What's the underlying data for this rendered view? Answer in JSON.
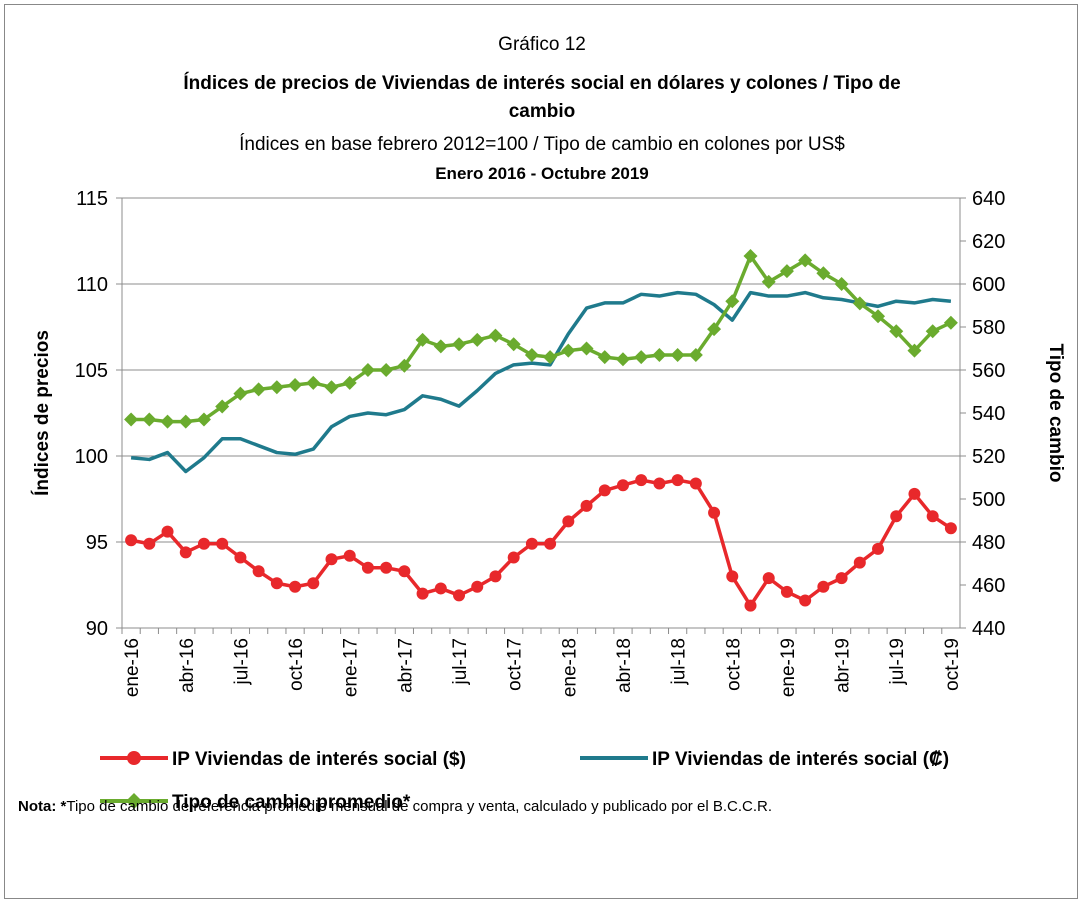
{
  "chart_data": {
    "type": "line",
    "title_top": "Gráfico 12",
    "title": "Índices de precios de Viviendas de interés social en dólares y colones / Tipo de cambio",
    "subtitle": "Índices en base febrero 2012=100 / Tipo de cambio en colones por US$",
    "period": "Enero 2016 - Octubre 2019",
    "y_label": "Índices de precios",
    "y2_label": "Tipo de cambio",
    "categories": [
      "ene-16",
      null,
      null,
      "abr-16",
      null,
      null,
      "jul-16",
      null,
      null,
      "oct-16",
      null,
      null,
      "ene-17",
      null,
      null,
      "abr-17",
      null,
      null,
      "jul-17",
      null,
      null,
      "oct-17",
      null,
      null,
      "ene-18",
      null,
      null,
      "abr-18",
      null,
      null,
      "jul-18",
      null,
      null,
      "oct-18",
      null,
      null,
      "ene-19",
      null,
      null,
      "abr-19",
      null,
      null,
      "jul-19",
      null,
      null,
      "oct-19"
    ],
    "ylim": [
      90,
      115
    ],
    "yticks": [
      90,
      95,
      100,
      105,
      110,
      115
    ],
    "y2lim": [
      440,
      640
    ],
    "y2ticks": [
      440,
      460,
      480,
      500,
      520,
      540,
      560,
      580,
      600,
      620,
      640
    ],
    "grid": true,
    "series": [
      {
        "name": "IP Viviendas de interés social ($)",
        "color": "#e8282b",
        "marker": "circle",
        "values": [
          95.1,
          94.9,
          95.6,
          94.4,
          94.9,
          94.9,
          94.1,
          93.3,
          92.6,
          92.4,
          92.6,
          94.0,
          94.2,
          93.5,
          93.5,
          93.3,
          92.0,
          92.3,
          91.9,
          92.4,
          93.0,
          94.1,
          94.9,
          94.9,
          96.2,
          97.1,
          98.0,
          98.3,
          98.6,
          98.4,
          98.6,
          98.4,
          96.7,
          93.0,
          91.3,
          92.9,
          92.1,
          91.6,
          92.4,
          92.9,
          93.8,
          94.6,
          96.5,
          97.8,
          96.5,
          95.8
        ]
      },
      {
        "name": "IP Viviendas de interés social (₡)",
        "color": "#1f7a8c",
        "marker": "none",
        "values": [
          99.9,
          99.8,
          100.2,
          99.1,
          99.9,
          101.0,
          101.0,
          100.6,
          100.2,
          100.1,
          100.4,
          101.7,
          102.3,
          102.5,
          102.4,
          102.7,
          103.5,
          103.3,
          102.9,
          103.8,
          104.8,
          105.3,
          105.4,
          105.3,
          107.1,
          108.6,
          108.9,
          108.9,
          109.4,
          109.3,
          109.5,
          109.4,
          108.8,
          107.9,
          109.5,
          109.3,
          109.3,
          109.5,
          109.2,
          109.1,
          108.9,
          108.7,
          109.0,
          108.9,
          109.1,
          109.0
        ]
      },
      {
        "name": "Tipo de cambio promedio*",
        "color": "#6aab2e",
        "marker": "diamond",
        "axis": "y2",
        "values": [
          537,
          537,
          536,
          536,
          537,
          543,
          549,
          551,
          552,
          553,
          554,
          552,
          554,
          560,
          560,
          562,
          574,
          571,
          572,
          574,
          576,
          572,
          567,
          566,
          569,
          570,
          566,
          565,
          566,
          567,
          567,
          567,
          579,
          592,
          613,
          601,
          606,
          611,
          605,
          600,
          591,
          585,
          578,
          569,
          578,
          582
        ]
      }
    ],
    "note_label": "Nota: *",
    "note": "Tipo de cambio de referencia promedio mensual de compra y venta, calculado y publicado por el B.C.C.R."
  }
}
